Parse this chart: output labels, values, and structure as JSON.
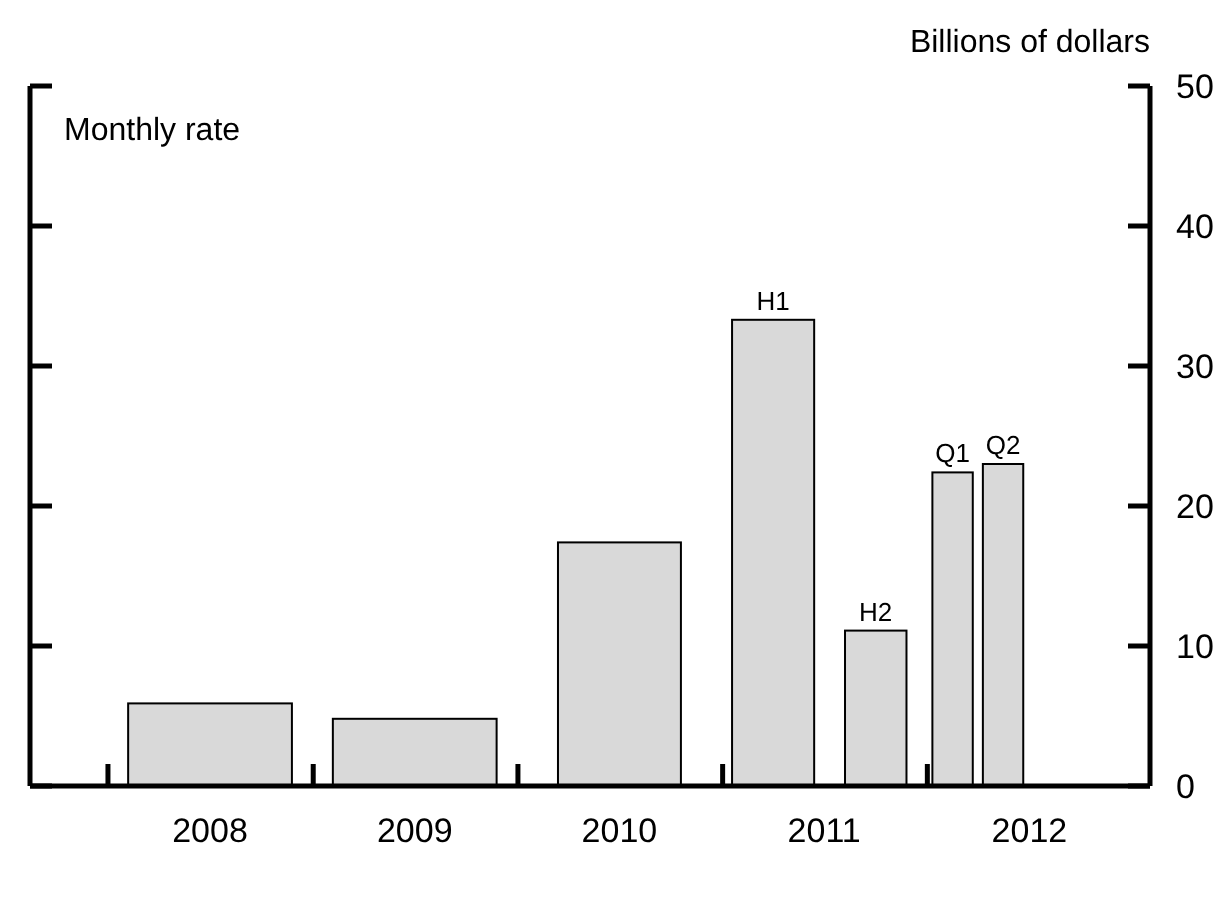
{
  "chart_data": {
    "type": "bar",
    "ylabel": "Billions of dollars",
    "annotations": [
      "Monthly rate"
    ],
    "x": [
      "2008-07-01",
      "2009-07-01",
      "2010-07-01",
      "2011-04-01",
      "2011-10-01",
      "2012-02-15",
      "2012-05-15"
    ],
    "values": [
      5.9,
      4.8,
      17.4,
      33.3,
      11.1,
      22.4,
      23.0
    ],
    "value_labels": [
      null,
      null,
      null,
      "H1",
      "H2",
      "Q1",
      "Q2"
    ],
    "color": "#d9d9d9",
    "xlim": [
      "2007-08-15",
      "2013-02-01"
    ],
    "xticks": [
      {
        "value": "2008-01-01",
        "label": null
      },
      {
        "value": "2008-07-01",
        "label": "2008"
      },
      {
        "value": "2009-01-01",
        "label": null
      },
      {
        "value": "2009-07-01",
        "label": "2009"
      },
      {
        "value": "2010-01-01",
        "label": null
      },
      {
        "value": "2010-07-01",
        "label": "2010"
      },
      {
        "value": "2011-01-01",
        "label": null
      },
      {
        "value": "2011-07-01",
        "label": "2011"
      },
      {
        "value": "2012-01-01",
        "label": null
      },
      {
        "value": "2012-07-01",
        "label": "2012"
      }
    ],
    "ylim": [
      0,
      50
    ],
    "yticks": [
      0,
      10,
      20,
      30,
      40,
      50
    ]
  }
}
